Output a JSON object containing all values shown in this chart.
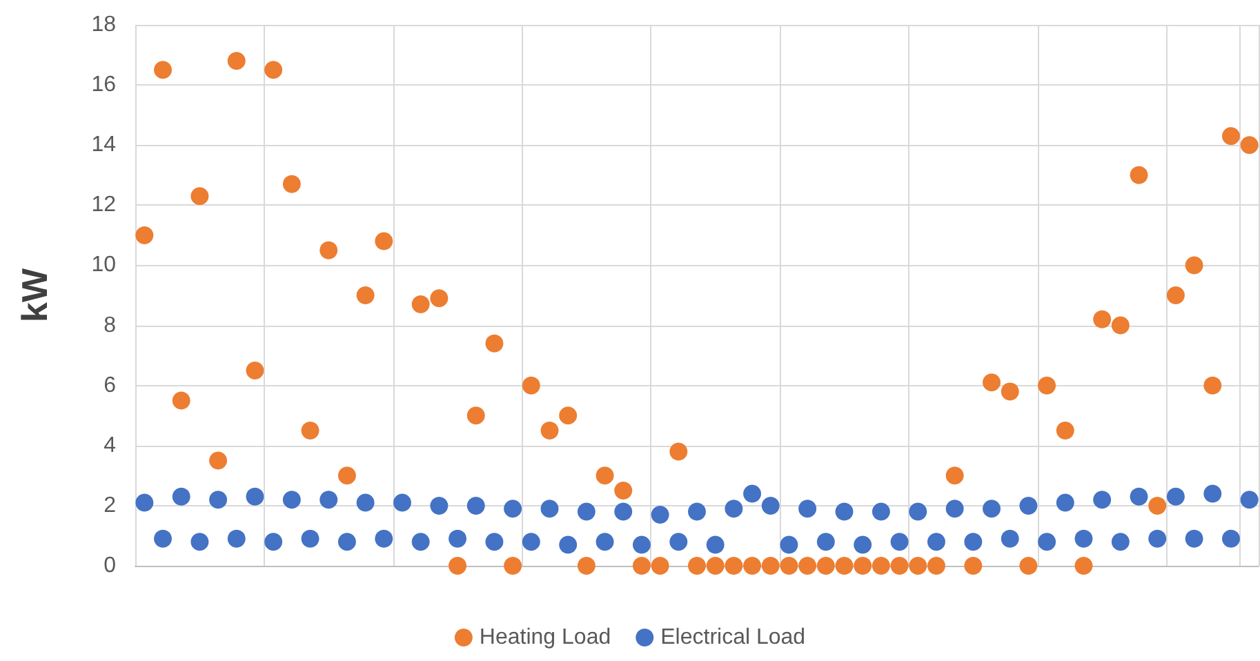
{
  "chart_data": {
    "type": "scatter",
    "ylabel": "kW",
    "categories": [
      null,
      null,
      null,
      null,
      null,
      null,
      null,
      null,
      null,
      null,
      null,
      null,
      null,
      null,
      null,
      null,
      null,
      null,
      null,
      null,
      null,
      null,
      null,
      null,
      null,
      null,
      null,
      null,
      null,
      null,
      null,
      null,
      null,
      null,
      null,
      null,
      null,
      null,
      null,
      null,
      null,
      null,
      null,
      null,
      null,
      null,
      null,
      null,
      null,
      null,
      null,
      null,
      null,
      null,
      null,
      null,
      null,
      null,
      null,
      null,
      null
    ],
    "ylim": [
      0,
      18
    ],
    "yticks": [
      0,
      2,
      4,
      6,
      8,
      10,
      12,
      14,
      16,
      18
    ],
    "grid": true,
    "legend": "bottom",
    "marker": "circle",
    "tick_labels": "y",
    "series": [
      {
        "name": "Heating Load",
        "color": "#ed7d31",
        "values": [
          11,
          16.5,
          5.5,
          12.3,
          3.5,
          16.8,
          6.5,
          16.5,
          12.7,
          4.5,
          10.5,
          3,
          9,
          10.8,
          null,
          8.7,
          8.9,
          0,
          5,
          7.4,
          0,
          6,
          4.5,
          5,
          0,
          3,
          2.5,
          0,
          0,
          3.8,
          0,
          0,
          0,
          0,
          0,
          0,
          0,
          0,
          0,
          0,
          0,
          0,
          0,
          0,
          3,
          0,
          6.1,
          5.8,
          0,
          6,
          4.5,
          0,
          8.2,
          8,
          13,
          2,
          9,
          10,
          6,
          14.3,
          14
        ]
      },
      {
        "name": "Electrical Load",
        "color": "#4472c4",
        "values": [
          2.1,
          0.9,
          2.3,
          0.8,
          2.2,
          0.9,
          2.3,
          0.8,
          2.2,
          0.9,
          2.2,
          0.8,
          2.1,
          0.9,
          2.1,
          0.8,
          2.0,
          0.9,
          2.0,
          0.8,
          1.9,
          0.8,
          1.9,
          0.7,
          1.8,
          0.8,
          1.8,
          0.7,
          1.7,
          0.8,
          1.8,
          0.7,
          1.9,
          2.4,
          2.0,
          0.7,
          1.9,
          0.8,
          1.8,
          0.7,
          1.8,
          0.8,
          1.8,
          0.8,
          1.9,
          0.8,
          1.9,
          0.9,
          2.0,
          0.8,
          2.1,
          0.9,
          2.2,
          0.8,
          2.3,
          0.9,
          2.3,
          0.9,
          2.4,
          0.9,
          2.2
        ]
      }
    ]
  }
}
